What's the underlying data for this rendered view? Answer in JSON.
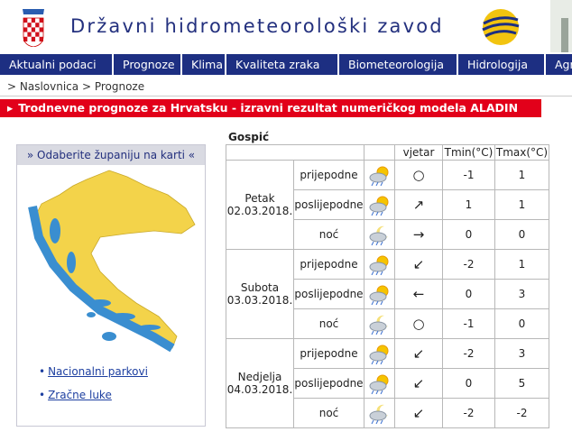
{
  "header": {
    "title": "Državni hidrometeorološki zavod"
  },
  "nav": [
    "Aktualni podaci",
    "Prognoze",
    "Klima",
    "Kvaliteta zraka",
    "Biometeorologija",
    "Hidrologija",
    "Agr"
  ],
  "breadcrumb": [
    "Naslovnica",
    "Prognoze"
  ],
  "banner": "Trodnevne prognoze za Hrvatsku - izravni rezultat numeričkog modela ALADIN",
  "map_panel": {
    "title": "» Odaberite županiju na karti «",
    "links": [
      "Nacionalni parkovi",
      "Zračne luke"
    ]
  },
  "forecast": {
    "location": "Gospić",
    "columns": [
      "vjetar",
      "Tmin(°C)",
      "Tmax(°C)"
    ],
    "days": [
      {
        "name": "Petak",
        "date": "02.03.2018.",
        "periods": [
          {
            "period": "prijepodne",
            "wind": "○",
            "tmin": -1,
            "tmax": 1
          },
          {
            "period": "poslijepodne",
            "wind": "↗",
            "tmin": 1,
            "tmax": 1
          },
          {
            "period": "noć",
            "wind": "→",
            "tmin": 0,
            "tmax": 0
          }
        ]
      },
      {
        "name": "Subota",
        "date": "03.03.2018.",
        "periods": [
          {
            "period": "prijepodne",
            "wind": "↙",
            "tmin": -2,
            "tmax": 1
          },
          {
            "period": "poslijepodne",
            "wind": "←",
            "tmin": 0,
            "tmax": 3
          },
          {
            "period": "noć",
            "wind": "○",
            "tmin": -1,
            "tmax": 0
          }
        ]
      },
      {
        "name": "Nedjelja",
        "date": "04.03.2018.",
        "periods": [
          {
            "period": "prijepodne",
            "wind": "↙",
            "tmin": -2,
            "tmax": 3
          },
          {
            "period": "poslijepodne",
            "wind": "↙",
            "tmin": 0,
            "tmax": 5
          },
          {
            "period": "noć",
            "wind": "↙",
            "tmin": -2,
            "tmax": -2
          }
        ]
      }
    ]
  }
}
